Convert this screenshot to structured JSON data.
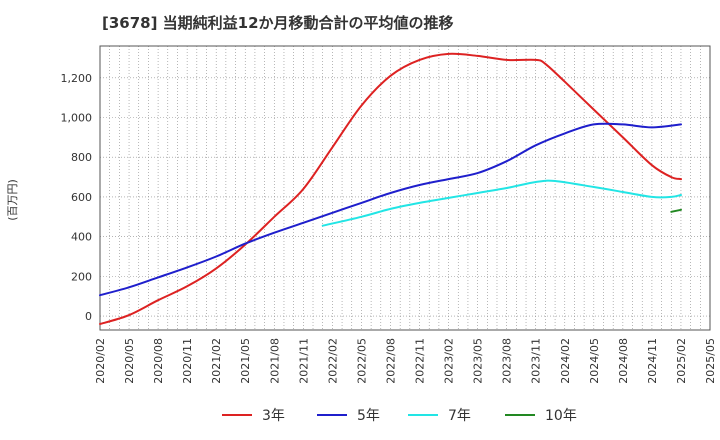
{
  "chart_data": {
    "type": "line",
    "title": "[3678]  当期純利益12か月移動合計の平均値の推移",
    "ylabel": "(百万円)",
    "xlabel": "",
    "ylim": [
      -70,
      1360
    ],
    "yticks": [
      0,
      200,
      400,
      600,
      800,
      1000,
      1200
    ],
    "ytick_labels": [
      "0",
      "200",
      "400",
      "600",
      "800",
      "1,000",
      "1,200"
    ],
    "xlim": [
      "2020-02",
      "2025-05"
    ],
    "xtick_labels": [
      "2020/02",
      "2020/05",
      "2020/08",
      "2020/11",
      "2021/02",
      "2021/05",
      "2021/08",
      "2021/11",
      "2022/02",
      "2022/05",
      "2022/08",
      "2022/11",
      "2023/02",
      "2023/05",
      "2023/08",
      "2023/11",
      "2024/02",
      "2024/05",
      "2024/08",
      "2024/11",
      "2025/02",
      "2025/05"
    ],
    "grid": true,
    "legend_position": "bottom",
    "series": [
      {
        "name": "3年",
        "color": "#dd2222",
        "points": [
          [
            "2020-02",
            -40
          ],
          [
            "2020-05",
            5
          ],
          [
            "2020-08",
            80
          ],
          [
            "2020-11",
            150
          ],
          [
            "2021-02",
            240
          ],
          [
            "2021-05",
            360
          ],
          [
            "2021-08",
            500
          ],
          [
            "2021-11",
            640
          ],
          [
            "2022-02",
            850
          ],
          [
            "2022-05",
            1060
          ],
          [
            "2022-08",
            1210
          ],
          [
            "2022-11",
            1290
          ],
          [
            "2023-02",
            1320
          ],
          [
            "2023-05",
            1310
          ],
          [
            "2023-08",
            1290
          ],
          [
            "2023-11",
            1290
          ],
          [
            "2023-12",
            1270
          ],
          [
            "2024-02",
            1180
          ],
          [
            "2024-05",
            1040
          ],
          [
            "2024-08",
            900
          ],
          [
            "2024-11",
            760
          ],
          [
            "2025-01",
            700
          ],
          [
            "2025-02",
            690
          ]
        ]
      },
      {
        "name": "5年",
        "color": "#1f1fcc",
        "points": [
          [
            "2020-02",
            105
          ],
          [
            "2020-05",
            145
          ],
          [
            "2020-08",
            195
          ],
          [
            "2020-11",
            245
          ],
          [
            "2021-02",
            300
          ],
          [
            "2021-05",
            365
          ],
          [
            "2021-08",
            420
          ],
          [
            "2021-11",
            470
          ],
          [
            "2022-02",
            520
          ],
          [
            "2022-05",
            570
          ],
          [
            "2022-08",
            620
          ],
          [
            "2022-11",
            660
          ],
          [
            "2023-02",
            690
          ],
          [
            "2023-05",
            720
          ],
          [
            "2023-08",
            780
          ],
          [
            "2023-11",
            860
          ],
          [
            "2024-02",
            920
          ],
          [
            "2024-05",
            965
          ],
          [
            "2024-08",
            965
          ],
          [
            "2024-11",
            950
          ],
          [
            "2025-02",
            965
          ]
        ]
      },
      {
        "name": "7年",
        "color": "#22e5e5",
        "points": [
          [
            "2022-01",
            455
          ],
          [
            "2022-05",
            500
          ],
          [
            "2022-08",
            540
          ],
          [
            "2022-11",
            570
          ],
          [
            "2023-02",
            595
          ],
          [
            "2023-05",
            620
          ],
          [
            "2023-08",
            645
          ],
          [
            "2023-11",
            675
          ],
          [
            "2024-01",
            680
          ],
          [
            "2024-05",
            650
          ],
          [
            "2024-08",
            625
          ],
          [
            "2024-11",
            600
          ],
          [
            "2025-01",
            600
          ],
          [
            "2025-02",
            610
          ]
        ]
      },
      {
        "name": "10年",
        "color": "#228822",
        "points": [
          [
            "2025-01",
            525
          ],
          [
            "2025-02",
            535
          ]
        ]
      }
    ]
  }
}
